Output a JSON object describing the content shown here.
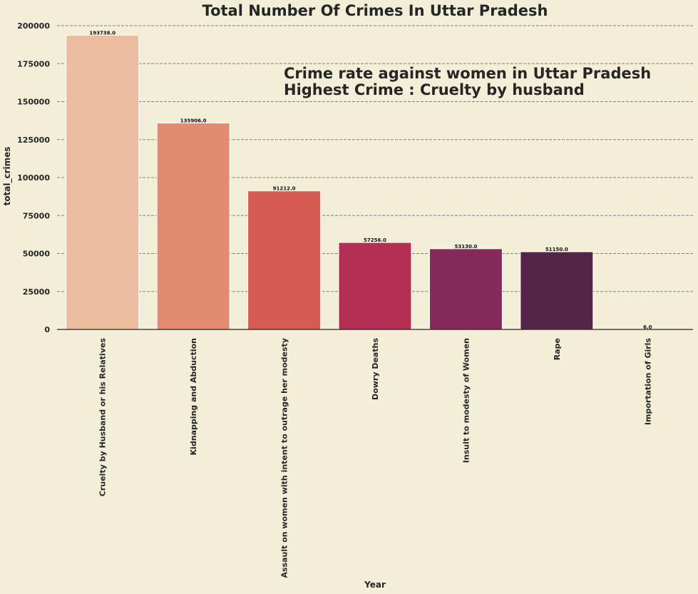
{
  "chart_data": {
    "type": "bar",
    "title": "Total Number Of Crimes In Uttar Pradesh",
    "xlabel": "Year",
    "ylabel": "total_crimes",
    "ylim": [
      0,
      200000
    ],
    "yticks": [
      0,
      25000,
      50000,
      75000,
      100000,
      125000,
      150000,
      175000,
      200000
    ],
    "grid": true,
    "categories": [
      "Cruelty by Husband or his Relatives",
      "Kidnapping and Abduction",
      "Assault on women with intent to outrage her modesty",
      "Dowry Deaths",
      "Insult to modesty of Women",
      "Rape",
      "Importation of Girls"
    ],
    "values": [
      193738.0,
      135906.0,
      91212.0,
      57256.0,
      53130.0,
      51150.0,
      6.0
    ],
    "data_labels": [
      "193738.0",
      "135906.0",
      "91212.0",
      "57256.0",
      "53130.0",
      "51150.0",
      "6.0"
    ],
    "colors": [
      "#ebbd9f",
      "#e28c6f",
      "#d65c53",
      "#b32f53",
      "#852a5a",
      "#552547",
      "#2f1a35"
    ],
    "annotation": [
      "Crime rate against women in Uttar Pradesh",
      "Highest Crime : Cruelty by husband"
    ]
  }
}
